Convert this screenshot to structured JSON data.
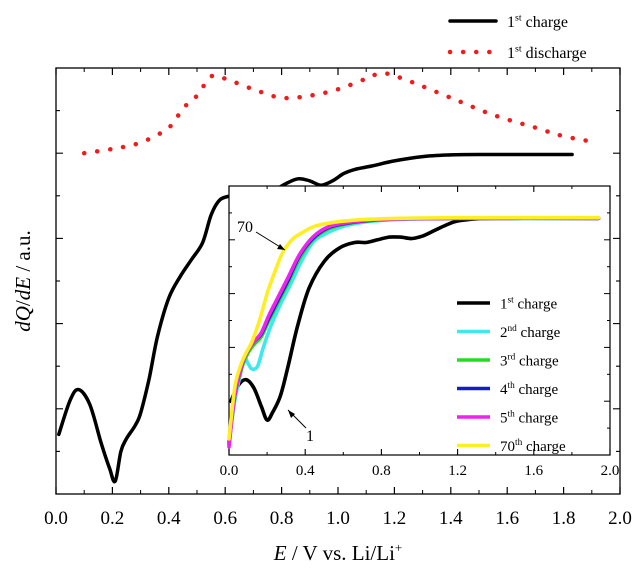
{
  "chart_data": [
    {
      "type": "line",
      "role": "main",
      "xlabel": {
        "italic": "E",
        "rest": " / V vs. Li/Li",
        "sup": "+"
      },
      "ylabel": {
        "pre": "dQ",
        "mid": "/",
        "italic2": "dE",
        "rest": " / a.u."
      },
      "xlim": [
        0.0,
        2.0
      ],
      "xticks": [
        "0.0",
        "0.2",
        "0.4",
        "0.6",
        "0.8",
        "1.0",
        "1.2",
        "1.4",
        "1.6",
        "1.8",
        "2.0"
      ],
      "ylim": [
        0,
        1
      ],
      "y_tick_labels": "none",
      "legend_position": "top-right",
      "series": [
        {
          "name": {
            "base": "1",
            "sup": "st",
            "rest": " charge"
          },
          "color": "#000000",
          "style": "solid",
          "points": [
            [
              0.01,
              0.14
            ],
            [
              0.05,
              0.22
            ],
            [
              0.08,
              0.245
            ],
            [
              0.12,
              0.21
            ],
            [
              0.16,
              0.12
            ],
            [
              0.19,
              0.06
            ],
            [
              0.21,
              0.03
            ],
            [
              0.23,
              0.1
            ],
            [
              0.25,
              0.13
            ],
            [
              0.28,
              0.16
            ],
            [
              0.3,
              0.19
            ],
            [
              0.33,
              0.27
            ],
            [
              0.36,
              0.37
            ],
            [
              0.4,
              0.46
            ],
            [
              0.44,
              0.51
            ],
            [
              0.48,
              0.55
            ],
            [
              0.52,
              0.59
            ],
            [
              0.55,
              0.655
            ],
            [
              0.58,
              0.69
            ],
            [
              0.62,
              0.7
            ],
            [
              0.66,
              0.705
            ],
            [
              0.7,
              0.7
            ],
            [
              0.74,
              0.7
            ],
            [
              0.78,
              0.715
            ],
            [
              0.82,
              0.73
            ],
            [
              0.86,
              0.74
            ],
            [
              0.9,
              0.735
            ],
            [
              0.94,
              0.725
            ],
            [
              0.98,
              0.735
            ],
            [
              1.02,
              0.752
            ],
            [
              1.06,
              0.762
            ],
            [
              1.12,
              0.77
            ],
            [
              1.2,
              0.782
            ],
            [
              1.3,
              0.792
            ],
            [
              1.4,
              0.796
            ],
            [
              1.5,
              0.797
            ],
            [
              1.6,
              0.797
            ],
            [
              1.7,
              0.797
            ],
            [
              1.8,
              0.797
            ],
            [
              1.83,
              0.797
            ]
          ]
        },
        {
          "name": {
            "base": "1",
            "sup": "st",
            "rest": " discharge"
          },
          "color": "#ee1c1c",
          "style": "dotted",
          "points": [
            [
              0.1,
              0.8
            ],
            [
              0.2,
              0.81
            ],
            [
              0.3,
              0.825
            ],
            [
              0.4,
              0.86
            ],
            [
              0.45,
              0.905
            ],
            [
              0.5,
              0.935
            ],
            [
              0.55,
              0.98
            ],
            [
              0.6,
              0.975
            ],
            [
              0.7,
              0.95
            ],
            [
              0.8,
              0.93
            ],
            [
              0.9,
              0.935
            ],
            [
              1.0,
              0.95
            ],
            [
              1.1,
              0.975
            ],
            [
              1.16,
              0.988
            ],
            [
              1.25,
              0.97
            ],
            [
              1.4,
              0.93
            ],
            [
              1.55,
              0.89
            ],
            [
              1.7,
              0.86
            ],
            [
              1.8,
              0.84
            ],
            [
              1.92,
              0.825
            ]
          ]
        }
      ]
    },
    {
      "type": "line",
      "role": "inset",
      "xlim": [
        0.0,
        2.0
      ],
      "xticks": [
        "0.0",
        "0.4",
        "0.8",
        "1.2",
        "1.6",
        "2.0"
      ],
      "ylim": [
        0,
        1
      ],
      "y_tick_labels": "none",
      "legend_position": "bottom-right",
      "annotations": [
        {
          "text": "70",
          "target_series": "70th"
        },
        {
          "text": "1",
          "target_series": "1st"
        }
      ],
      "series": [
        {
          "id": "1st",
          "name": {
            "base": "1",
            "sup": "st",
            "rest": " charge"
          },
          "color": "#000000",
          "points": [
            [
              0.01,
              0.2
            ],
            [
              0.05,
              0.26
            ],
            [
              0.09,
              0.28
            ],
            [
              0.13,
              0.25
            ],
            [
              0.17,
              0.18
            ],
            [
              0.2,
              0.13
            ],
            [
              0.23,
              0.16
            ],
            [
              0.27,
              0.22
            ],
            [
              0.31,
              0.33
            ],
            [
              0.36,
              0.48
            ],
            [
              0.42,
              0.62
            ],
            [
              0.5,
              0.72
            ],
            [
              0.58,
              0.77
            ],
            [
              0.66,
              0.79
            ],
            [
              0.72,
              0.79
            ],
            [
              0.78,
              0.8
            ],
            [
              0.84,
              0.81
            ],
            [
              0.9,
              0.81
            ],
            [
              0.96,
              0.805
            ],
            [
              1.02,
              0.815
            ],
            [
              1.08,
              0.835
            ],
            [
              1.14,
              0.855
            ],
            [
              1.2,
              0.87
            ],
            [
              1.3,
              0.878
            ],
            [
              1.4,
              0.88
            ],
            [
              1.6,
              0.88
            ],
            [
              1.8,
              0.88
            ],
            [
              1.94,
              0.88
            ]
          ]
        },
        {
          "id": "2nd",
          "name": {
            "base": "2",
            "sup": "nd",
            "rest": " charge"
          },
          "color": "#3fe8ef",
          "points": [
            [
              0.0,
              0.05
            ],
            [
              0.03,
              0.2
            ],
            [
              0.06,
              0.3
            ],
            [
              0.08,
              0.36
            ],
            [
              0.1,
              0.34
            ],
            [
              0.12,
              0.32
            ],
            [
              0.15,
              0.33
            ],
            [
              0.18,
              0.4
            ],
            [
              0.22,
              0.48
            ],
            [
              0.27,
              0.56
            ],
            [
              0.32,
              0.63
            ],
            [
              0.38,
              0.72
            ],
            [
              0.44,
              0.79
            ],
            [
              0.5,
              0.82
            ],
            [
              0.6,
              0.85
            ],
            [
              0.7,
              0.865
            ],
            [
              0.8,
              0.872
            ],
            [
              1.0,
              0.878
            ],
            [
              1.2,
              0.88
            ],
            [
              1.5,
              0.88
            ],
            [
              1.94,
              0.88
            ]
          ]
        },
        {
          "id": "3rd",
          "name": {
            "base": "3",
            "sup": "rd",
            "rest": " charge"
          },
          "color": "#22dd22",
          "points": [
            [
              0.0,
              0.05
            ],
            [
              0.03,
              0.22
            ],
            [
              0.07,
              0.33
            ],
            [
              0.1,
              0.38
            ],
            [
              0.13,
              0.41
            ],
            [
              0.17,
              0.44
            ],
            [
              0.21,
              0.5
            ],
            [
              0.26,
              0.57
            ],
            [
              0.31,
              0.64
            ],
            [
              0.37,
              0.73
            ],
            [
              0.44,
              0.8
            ],
            [
              0.52,
              0.84
            ],
            [
              0.62,
              0.86
            ],
            [
              0.75,
              0.872
            ],
            [
              0.9,
              0.878
            ],
            [
              1.2,
              0.88
            ],
            [
              1.94,
              0.88
            ]
          ]
        },
        {
          "id": "4th",
          "name": {
            "base": "4",
            "sup": "th",
            "rest": " charge"
          },
          "color": "#1020c8",
          "points": [
            [
              0.0,
              0.04
            ],
            [
              0.03,
              0.22
            ],
            [
              0.07,
              0.34
            ],
            [
              0.1,
              0.39
            ],
            [
              0.13,
              0.42
            ],
            [
              0.17,
              0.45
            ],
            [
              0.21,
              0.51
            ],
            [
              0.26,
              0.58
            ],
            [
              0.31,
              0.65
            ],
            [
              0.37,
              0.74
            ],
            [
              0.44,
              0.805
            ],
            [
              0.52,
              0.845
            ],
            [
              0.62,
              0.862
            ],
            [
              0.75,
              0.873
            ],
            [
              0.9,
              0.878
            ],
            [
              1.2,
              0.88
            ],
            [
              1.94,
              0.88
            ]
          ]
        },
        {
          "id": "5th",
          "name": {
            "base": "5",
            "sup": "th",
            "rest": " charge"
          },
          "color": "#ee22ee",
          "points": [
            [
              0.0,
              0.03
            ],
            [
              0.03,
              0.22
            ],
            [
              0.07,
              0.34
            ],
            [
              0.1,
              0.39
            ],
            [
              0.13,
              0.42
            ],
            [
              0.17,
              0.455
            ],
            [
              0.21,
              0.52
            ],
            [
              0.26,
              0.59
            ],
            [
              0.31,
              0.66
            ],
            [
              0.37,
              0.745
            ],
            [
              0.44,
              0.81
            ],
            [
              0.52,
              0.848
            ],
            [
              0.62,
              0.864
            ],
            [
              0.75,
              0.874
            ],
            [
              0.9,
              0.878
            ],
            [
              1.2,
              0.88
            ],
            [
              1.94,
              0.88
            ]
          ]
        },
        {
          "id": "70th",
          "name": {
            "base": "70",
            "sup": "th",
            "rest": " charge"
          },
          "color": "#ffee22",
          "points": [
            [
              0.0,
              0.06
            ],
            [
              0.03,
              0.25
            ],
            [
              0.06,
              0.33
            ],
            [
              0.09,
              0.38
            ],
            [
              0.12,
              0.42
            ],
            [
              0.16,
              0.5
            ],
            [
              0.2,
              0.6
            ],
            [
              0.24,
              0.68
            ],
            [
              0.28,
              0.75
            ],
            [
              0.33,
              0.8
            ],
            [
              0.38,
              0.825
            ],
            [
              0.45,
              0.85
            ],
            [
              0.55,
              0.865
            ],
            [
              0.7,
              0.875
            ],
            [
              0.9,
              0.88
            ],
            [
              1.2,
              0.882
            ],
            [
              1.94,
              0.882
            ]
          ]
        }
      ]
    }
  ]
}
